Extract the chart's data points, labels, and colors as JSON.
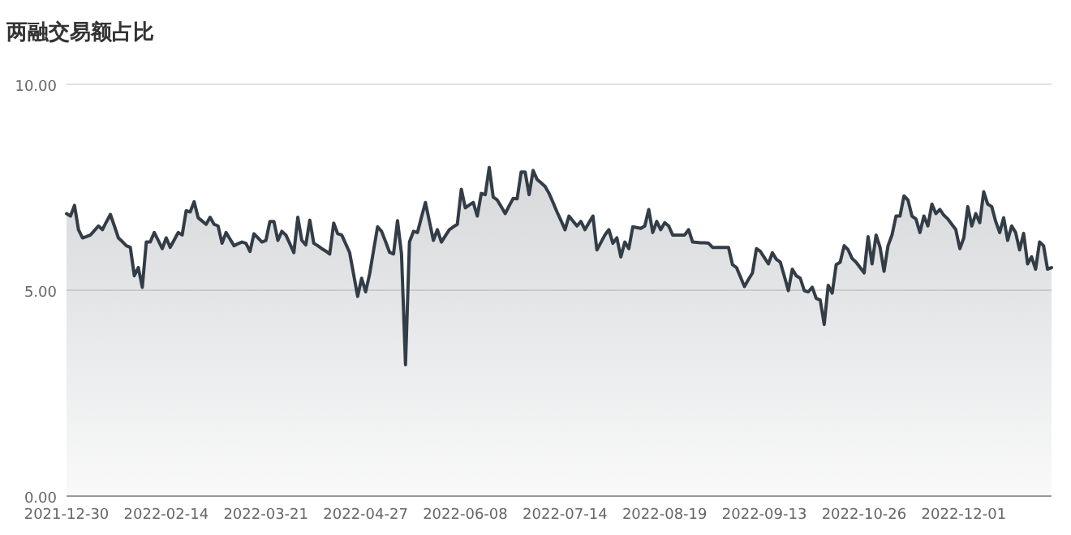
{
  "chart_data": {
    "type": "area",
    "title": "两融交易额占比",
    "categories": [
      "2021-12-30",
      null,
      null,
      null,
      null,
      null,
      null,
      null,
      null,
      null,
      null,
      null,
      null,
      null,
      null,
      null,
      null,
      null,
      null,
      null,
      null,
      null,
      null,
      null,
      null,
      "2022-02-14",
      null,
      null,
      null,
      null,
      null,
      null,
      null,
      null,
      null,
      null,
      null,
      null,
      null,
      null,
      null,
      null,
      null,
      null,
      null,
      null,
      null,
      null,
      null,
      null,
      "2022-03-21",
      null,
      null,
      null,
      null,
      null,
      null,
      null,
      null,
      null,
      null,
      null,
      null,
      null,
      null,
      null,
      null,
      null,
      null,
      null,
      null,
      null,
      null,
      null,
      null,
      "2022-04-27",
      null,
      null,
      null,
      null,
      null,
      null,
      null,
      null,
      null,
      null,
      null,
      null,
      null,
      null,
      null,
      null,
      null,
      null,
      null,
      null,
      null,
      null,
      null,
      null,
      "2022-06-08",
      null,
      null,
      null,
      null,
      null,
      null,
      null,
      null,
      null,
      null,
      null,
      null,
      null,
      null,
      null,
      null,
      null,
      null,
      null,
      null,
      null,
      null,
      null,
      null,
      "2022-07-14",
      null,
      null,
      null,
      null,
      null,
      null,
      null,
      null,
      null,
      null,
      null,
      null,
      null,
      null,
      null,
      null,
      null,
      null,
      null,
      null,
      null,
      null,
      null,
      null,
      "2022-08-19",
      null,
      null,
      null,
      null,
      null,
      null,
      null,
      null,
      null,
      null,
      null,
      null,
      null,
      null,
      null,
      null,
      null,
      null,
      null,
      null,
      null,
      null,
      null,
      null,
      "2022-09-13",
      null,
      null,
      null,
      null,
      null,
      null,
      null,
      null,
      null,
      null,
      null,
      null,
      null,
      null,
      null,
      null,
      null,
      null,
      null,
      null,
      null,
      null,
      null,
      null,
      "2022-10-26",
      null,
      null,
      null,
      null,
      null,
      null,
      null,
      null,
      null,
      null,
      null,
      null,
      null,
      null,
      null,
      null,
      null,
      null,
      null,
      null,
      null,
      null,
      null,
      null,
      "2022-12-01",
      null,
      null,
      null,
      null,
      null,
      null,
      null,
      null,
      null,
      null,
      null,
      null,
      null,
      null,
      null,
      null,
      null,
      null,
      null,
      null,
      null,
      null
    ],
    "ylim": [
      0,
      10
    ],
    "yticks": [
      {
        "value": 0,
        "label": "0.00"
      },
      {
        "value": 5,
        "label": "5.00"
      },
      {
        "value": 10,
        "label": "10.00"
      }
    ],
    "grid": "y",
    "series": [
      {
        "color": "#333d47",
        "values": [
          6.86,
          6.8,
          7.06,
          6.47,
          6.27,
          6.3,
          6.34,
          6.45,
          6.56,
          6.47,
          6.66,
          6.84,
          6.56,
          6.27,
          6.18,
          6.08,
          6.04,
          5.35,
          5.55,
          5.07,
          6.17,
          6.17,
          6.4,
          6.21,
          6.01,
          6.27,
          6.04,
          6.22,
          6.4,
          6.34,
          6.93,
          6.9,
          7.15,
          6.76,
          6.68,
          6.6,
          6.77,
          6.6,
          6.56,
          6.14,
          6.4,
          6.24,
          6.08,
          6.13,
          6.17,
          6.14,
          5.94,
          6.37,
          6.27,
          6.17,
          6.21,
          6.67,
          6.67,
          6.21,
          6.43,
          6.34,
          6.13,
          5.91,
          6.77,
          6.21,
          6.1,
          6.7,
          6.14,
          6.08,
          6.01,
          5.95,
          5.88,
          6.63,
          6.37,
          6.34,
          6.13,
          5.91,
          5.38,
          4.85,
          5.29,
          4.96,
          5.39,
          5.97,
          6.54,
          6.43,
          6.18,
          5.92,
          5.88,
          6.69,
          5.88,
          3.19,
          6.17,
          6.43,
          6.4,
          6.77,
          7.13,
          6.67,
          6.21,
          6.47,
          6.17,
          6.32,
          6.47,
          6.54,
          6.6,
          7.45,
          7.0,
          7.07,
          7.13,
          6.8,
          7.35,
          7.32,
          7.98,
          7.26,
          7.19,
          7.03,
          6.86,
          7.05,
          7.23,
          7.22,
          7.87,
          7.87,
          7.32,
          7.91,
          7.69,
          7.61,
          7.52,
          7.35,
          7.13,
          6.9,
          6.69,
          6.47,
          6.8,
          6.68,
          6.56,
          6.67,
          6.47,
          6.64,
          6.8,
          5.98,
          6.16,
          6.34,
          6.47,
          6.14,
          6.27,
          5.81,
          6.17,
          6.01,
          6.54,
          6.52,
          6.5,
          6.56,
          6.96,
          6.4,
          6.67,
          6.47,
          6.64,
          6.56,
          6.34,
          6.34,
          6.34,
          6.34,
          6.47,
          6.17,
          6.16,
          6.15,
          6.15,
          6.14,
          6.04,
          6.04,
          6.04,
          6.04,
          6.04,
          5.62,
          5.55,
          5.32,
          5.09,
          5.26,
          5.42,
          6.01,
          5.94,
          5.79,
          5.64,
          5.91,
          5.75,
          5.68,
          5.34,
          4.99,
          5.51,
          5.35,
          5.29,
          4.99,
          4.96,
          5.07,
          4.8,
          4.76,
          4.17,
          5.12,
          4.93,
          5.62,
          5.68,
          6.08,
          5.98,
          5.77,
          5.68,
          5.55,
          5.42,
          6.3,
          5.64,
          6.34,
          6.04,
          5.46,
          6.08,
          6.34,
          6.8,
          6.8,
          7.29,
          7.19,
          6.8,
          6.73,
          6.4,
          6.8,
          6.56,
          7.09,
          6.86,
          6.96,
          6.82,
          6.73,
          6.6,
          6.47,
          6.01,
          6.27,
          7.03,
          6.56,
          6.86,
          6.64,
          7.39,
          7.09,
          7.03,
          6.67,
          6.4,
          6.76,
          6.21,
          6.56,
          6.4,
          5.98,
          6.38,
          5.64,
          5.81,
          5.51,
          6.17,
          6.08,
          5.51,
          5.55
        ]
      }
    ]
  }
}
